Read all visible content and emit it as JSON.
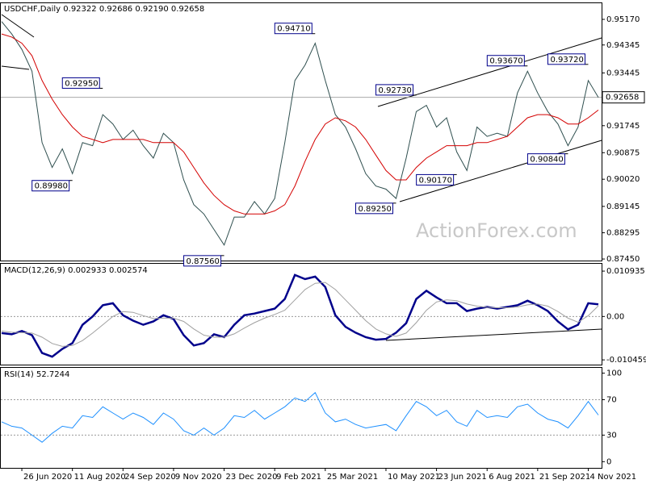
{
  "chart_data": [
    {
      "type": "line",
      "title": "USDCHF,Daily  0.92322 0.92686 0.92190 0.92658",
      "watermark": "ActionForex.com",
      "ylim": [
        0.874,
        0.9569
      ],
      "yticks": [
        {
          "value": 0.9517,
          "label": "0.95170"
        },
        {
          "value": 0.94345,
          "label": "0.94345"
        },
        {
          "value": 0.93445,
          "label": "0.93445"
        },
        {
          "value": 0.91745,
          "label": "0.91745"
        },
        {
          "value": 0.90875,
          "label": "0.90875"
        },
        {
          "value": 0.9002,
          "label": "0.90020"
        },
        {
          "value": 0.89145,
          "label": "0.89145"
        },
        {
          "value": 0.88295,
          "label": "0.88295"
        },
        {
          "value": 0.8745,
          "label": "0.87450"
        }
      ],
      "current": {
        "value": 0.92658,
        "label": "0.92658"
      },
      "series": [
        {
          "color": "#2f4f4f",
          "values": [
            0.951,
            0.947,
            0.942,
            0.935,
            0.912,
            0.904,
            0.91,
            0.902,
            0.912,
            0.911,
            0.921,
            0.918,
            0.913,
            0.916,
            0.911,
            0.907,
            0.915,
            0.912,
            0.9,
            0.892,
            0.889,
            0.884,
            0.879,
            0.888,
            0.888,
            0.893,
            0.889,
            0.894,
            0.912,
            0.932,
            0.937,
            0.944,
            0.932,
            0.921,
            0.917,
            0.91,
            0.902,
            0.898,
            0.897,
            0.894,
            0.907,
            0.922,
            0.924,
            0.917,
            0.92,
            0.909,
            0.903,
            0.917,
            0.914,
            0.915,
            0.914,
            0.928,
            0.935,
            0.928,
            0.922,
            0.918,
            0.911,
            0.917,
            0.932,
            0.92658
          ]
        },
        {
          "color": "#d40000",
          "values": [
            0.947,
            0.946,
            0.944,
            0.94,
            0.932,
            0.926,
            0.921,
            0.917,
            0.914,
            0.913,
            0.912,
            0.913,
            0.913,
            0.913,
            0.913,
            0.912,
            0.912,
            0.912,
            0.909,
            0.904,
            0.899,
            0.895,
            0.892,
            0.89,
            0.889,
            0.889,
            0.889,
            0.89,
            0.892,
            0.898,
            0.906,
            0.913,
            0.918,
            0.92,
            0.919,
            0.917,
            0.913,
            0.908,
            0.903,
            0.9,
            0.9,
            0.904,
            0.907,
            0.909,
            0.911,
            0.911,
            0.911,
            0.912,
            0.912,
            0.913,
            0.914,
            0.917,
            0.92,
            0.921,
            0.921,
            0.92,
            0.918,
            0.918,
            0.92,
            0.9225
          ]
        }
      ],
      "annotations": [
        {
          "label": "0.94710",
          "value": 0.9471,
          "x": 31
        },
        {
          "label": "0.92950",
          "value": 0.9295,
          "x": 10
        },
        {
          "label": "0.89980",
          "value": 0.8998,
          "x": 7
        },
        {
          "label": "0.87560",
          "value": 0.8756,
          "x": 22
        },
        {
          "label": "0.89250",
          "value": 0.8925,
          "x": 39
        },
        {
          "label": "0.92730",
          "value": 0.9273,
          "x": 41
        },
        {
          "label": "0.90170",
          "value": 0.9017,
          "x": 45
        },
        {
          "label": "0.93670",
          "value": 0.9367,
          "x": 52
        },
        {
          "label": "0.93720",
          "value": 0.9372,
          "x": 58
        },
        {
          "label": "0.90840",
          "value": 0.9084,
          "x": 56
        }
      ]
    },
    {
      "type": "line",
      "title": "MACD(12,26,9) 0.002933 0.002574",
      "ylim": [
        -0.0116,
        0.0127
      ],
      "yticks": [
        0.010935,
        {
          "value": 0,
          "label": "0.00"
        },
        -0.010459
      ],
      "series": [
        {
          "color": "#00008b",
          "values": [
            -0.004,
            -0.0043,
            -0.0035,
            -0.0045,
            -0.0088,
            -0.0097,
            -0.0078,
            -0.0064,
            -0.002,
            0,
            0.0027,
            0.0032,
            0.0003,
            -0.001,
            -0.002,
            -0.0012,
            0.0003,
            -0.0006,
            -0.0045,
            -0.007,
            -0.0064,
            -0.0043,
            -0.005,
            -0.002,
            0.0003,
            0.0007,
            0.0013,
            0.0019,
            0.0042,
            0.01,
            0.009,
            0.0096,
            0.0071,
            0.0003,
            -0.0025,
            -0.0039,
            -0.005,
            -0.0056,
            -0.0054,
            -0.0039,
            -0.0016,
            0.0042,
            0.0062,
            0.0046,
            0.0032,
            0.0032,
            0.0013,
            0.0019,
            0.0023,
            0.0019,
            0.0023,
            0.0027,
            0.0038,
            0.0027,
            0.0013,
            -0.0012,
            -0.0031,
            -0.002,
            0.0032,
            0.002933
          ]
        },
        {
          "color": "#a0a0a0",
          "values": [
            -0.0035,
            -0.0038,
            -0.0039,
            -0.004,
            -0.005,
            -0.0065,
            -0.0072,
            -0.007,
            -0.0058,
            -0.004,
            -0.002,
            0,
            0.0012,
            0.001,
            0.0002,
            -0.0005,
            -0.0004,
            -0.0004,
            -0.0012,
            -0.003,
            -0.0045,
            -0.005,
            -0.005,
            -0.0042,
            -0.0028,
            -0.0015,
            -0.0004,
            0.0005,
            0.0015,
            0.004,
            0.0065,
            0.008,
            0.0082,
            0.0065,
            0.004,
            0.0015,
            -0.001,
            -0.003,
            -0.0042,
            -0.0048,
            -0.004,
            -0.0015,
            0.0015,
            0.0035,
            0.004,
            0.0038,
            0.003,
            0.0025,
            0.0022,
            0.0021,
            0.0021,
            0.0023,
            0.0028,
            0.003,
            0.0025,
            0.0012,
            -0.0004,
            -0.0014,
            0.0002,
            0.002574
          ]
        }
      ]
    },
    {
      "type": "line",
      "title": "RSI(14) 52.7244",
      "ylim": [
        -7,
        106
      ],
      "yticks": [
        100,
        70,
        30,
        0
      ],
      "levels": [
        70,
        30
      ],
      "categories": [
        null,
        null,
        "26 Jun 2020",
        null,
        null,
        null,
        null,
        "11 Aug 2020",
        null,
        null,
        null,
        null,
        "24 Sep 2020",
        null,
        null,
        null,
        null,
        "9 Nov 2020",
        null,
        null,
        null,
        null,
        "23 Dec 2020",
        null,
        null,
        null,
        null,
        "9 Feb 2021",
        null,
        null,
        null,
        null,
        "25 Mar 2021",
        null,
        null,
        null,
        null,
        null,
        "10 May 2021",
        null,
        null,
        null,
        null,
        "23 Jun 2021",
        null,
        null,
        null,
        null,
        "6 Aug 2021",
        null,
        null,
        null,
        null,
        "21 Sep 2021",
        null,
        null,
        null,
        null,
        "4 Nov 2021",
        null
      ],
      "series": [
        {
          "color": "#1e90ff",
          "values": [
            45,
            40,
            38,
            30,
            22,
            32,
            40,
            38,
            52,
            50,
            62,
            55,
            48,
            55,
            50,
            42,
            55,
            48,
            35,
            30,
            38,
            30,
            38,
            52,
            50,
            58,
            48,
            55,
            62,
            72,
            68,
            78,
            55,
            45,
            48,
            42,
            38,
            40,
            42,
            35,
            52,
            68,
            62,
            52,
            58,
            45,
            40,
            58,
            50,
            52,
            50,
            62,
            65,
            55,
            48,
            45,
            38,
            52,
            68,
            52.7244
          ]
        }
      ]
    }
  ]
}
